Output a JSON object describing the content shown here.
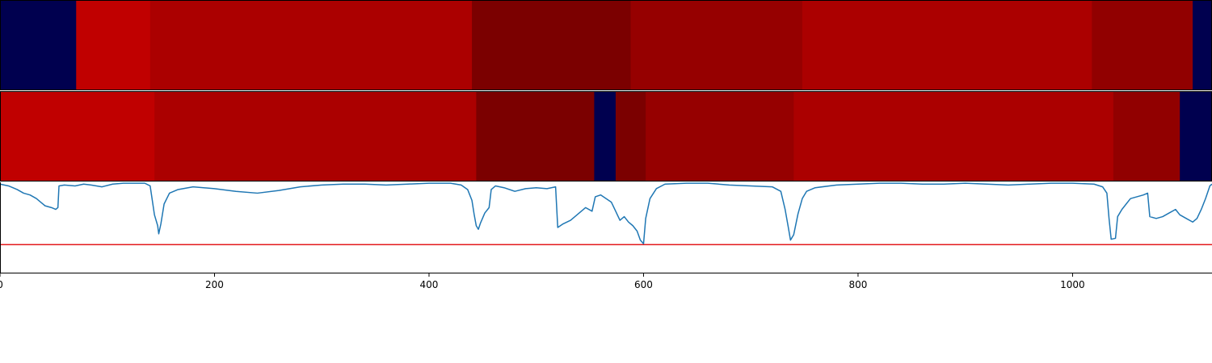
{
  "chart_data": {
    "type": "heatmap",
    "x_range": [
      0,
      1130
    ],
    "x_ticks": [
      {
        "value": 0,
        "label": "0"
      },
      {
        "value": 200,
        "label": "200"
      },
      {
        "value": 400,
        "label": "400"
      },
      {
        "value": 600,
        "label": "600"
      },
      {
        "value": 800,
        "label": "800"
      },
      {
        "value": 1000,
        "label": "1000"
      }
    ],
    "tracks": [
      {
        "segments": [
          {
            "start": 0,
            "end": 71,
            "color": "#00004f"
          },
          {
            "start": 71,
            "end": 140,
            "color": "#c00000"
          },
          {
            "start": 140,
            "end": 440,
            "color": "#ab0000"
          },
          {
            "start": 440,
            "end": 588,
            "color": "#7b0000"
          },
          {
            "start": 588,
            "end": 748,
            "color": "#960000"
          },
          {
            "start": 748,
            "end": 1018,
            "color": "#ab0000"
          },
          {
            "start": 1018,
            "end": 1112,
            "color": "#910000"
          },
          {
            "start": 1112,
            "end": 1130,
            "color": "#00004f"
          }
        ]
      },
      {
        "segments": [
          {
            "start": 0,
            "end": 144,
            "color": "#c00000"
          },
          {
            "start": 144,
            "end": 444,
            "color": "#ab0000"
          },
          {
            "start": 444,
            "end": 554,
            "color": "#7b0000"
          },
          {
            "start": 554,
            "end": 574,
            "color": "#00004f"
          },
          {
            "start": 574,
            "end": 602,
            "color": "#7b0000"
          },
          {
            "start": 602,
            "end": 740,
            "color": "#960000"
          },
          {
            "start": 740,
            "end": 1038,
            "color": "#ab0000"
          },
          {
            "start": 1038,
            "end": 1100,
            "color": "#910000"
          },
          {
            "start": 1100,
            "end": 1130,
            "color": "#00004f"
          }
        ]
      }
    ],
    "line": {
      "color": "#1f77b4",
      "ylim": [
        0,
        1
      ],
      "threshold": {
        "value": 0.31,
        "color": "#e31a1c"
      },
      "points": [
        [
          0,
          0.98
        ],
        [
          8,
          0.96
        ],
        [
          16,
          0.92
        ],
        [
          22,
          0.88
        ],
        [
          28,
          0.86
        ],
        [
          34,
          0.82
        ],
        [
          38,
          0.78
        ],
        [
          42,
          0.74
        ],
        [
          48,
          0.72
        ],
        [
          52,
          0.7
        ],
        [
          54,
          0.72
        ],
        [
          55,
          0.96
        ],
        [
          60,
          0.97
        ],
        [
          70,
          0.96
        ],
        [
          78,
          0.98
        ],
        [
          85,
          0.97
        ],
        [
          95,
          0.95
        ],
        [
          105,
          0.98
        ],
        [
          115,
          0.99
        ],
        [
          125,
          0.99
        ],
        [
          135,
          0.99
        ],
        [
          140,
          0.96
        ],
        [
          142,
          0.8
        ],
        [
          144,
          0.64
        ],
        [
          147,
          0.52
        ],
        [
          148,
          0.43
        ],
        [
          150,
          0.54
        ],
        [
          153,
          0.76
        ],
        [
          158,
          0.88
        ],
        [
          166,
          0.92
        ],
        [
          180,
          0.95
        ],
        [
          200,
          0.93
        ],
        [
          220,
          0.9
        ],
        [
          240,
          0.88
        ],
        [
          260,
          0.91
        ],
        [
          280,
          0.95
        ],
        [
          300,
          0.97
        ],
        [
          320,
          0.98
        ],
        [
          340,
          0.98
        ],
        [
          360,
          0.97
        ],
        [
          380,
          0.98
        ],
        [
          400,
          0.99
        ],
        [
          420,
          0.99
        ],
        [
          430,
          0.97
        ],
        [
          436,
          0.92
        ],
        [
          440,
          0.8
        ],
        [
          442,
          0.65
        ],
        [
          444,
          0.52
        ],
        [
          446,
          0.48
        ],
        [
          448,
          0.55
        ],
        [
          452,
          0.66
        ],
        [
          456,
          0.72
        ],
        [
          458,
          0.92
        ],
        [
          462,
          0.96
        ],
        [
          470,
          0.94
        ],
        [
          480,
          0.9
        ],
        [
          490,
          0.93
        ],
        [
          500,
          0.94
        ],
        [
          510,
          0.93
        ],
        [
          518,
          0.95
        ],
        [
          520,
          0.5
        ],
        [
          525,
          0.54
        ],
        [
          532,
          0.58
        ],
        [
          540,
          0.66
        ],
        [
          546,
          0.72
        ],
        [
          552,
          0.68
        ],
        [
          555,
          0.84
        ],
        [
          560,
          0.86
        ],
        [
          565,
          0.82
        ],
        [
          570,
          0.78
        ],
        [
          574,
          0.68
        ],
        [
          578,
          0.58
        ],
        [
          582,
          0.62
        ],
        [
          586,
          0.56
        ],
        [
          590,
          0.52
        ],
        [
          594,
          0.46
        ],
        [
          597,
          0.36
        ],
        [
          600,
          0.32
        ],
        [
          602,
          0.6
        ],
        [
          606,
          0.82
        ],
        [
          612,
          0.93
        ],
        [
          620,
          0.98
        ],
        [
          640,
          0.99
        ],
        [
          660,
          0.99
        ],
        [
          680,
          0.97
        ],
        [
          700,
          0.96
        ],
        [
          720,
          0.95
        ],
        [
          728,
          0.9
        ],
        [
          732,
          0.7
        ],
        [
          735,
          0.5
        ],
        [
          737,
          0.36
        ],
        [
          740,
          0.42
        ],
        [
          744,
          0.65
        ],
        [
          748,
          0.82
        ],
        [
          752,
          0.9
        ],
        [
          760,
          0.94
        ],
        [
          780,
          0.97
        ],
        [
          800,
          0.98
        ],
        [
          820,
          0.99
        ],
        [
          840,
          0.99
        ],
        [
          860,
          0.98
        ],
        [
          880,
          0.98
        ],
        [
          900,
          0.99
        ],
        [
          920,
          0.98
        ],
        [
          940,
          0.97
        ],
        [
          960,
          0.98
        ],
        [
          980,
          0.99
        ],
        [
          1000,
          0.99
        ],
        [
          1020,
          0.98
        ],
        [
          1028,
          0.95
        ],
        [
          1032,
          0.88
        ],
        [
          1034,
          0.6
        ],
        [
          1036,
          0.37
        ],
        [
          1040,
          0.38
        ],
        [
          1042,
          0.62
        ],
        [
          1046,
          0.7
        ],
        [
          1050,
          0.76
        ],
        [
          1054,
          0.82
        ],
        [
          1060,
          0.84
        ],
        [
          1066,
          0.86
        ],
        [
          1070,
          0.88
        ],
        [
          1072,
          0.62
        ],
        [
          1078,
          0.6
        ],
        [
          1084,
          0.62
        ],
        [
          1090,
          0.66
        ],
        [
          1096,
          0.7
        ],
        [
          1100,
          0.64
        ],
        [
          1106,
          0.6
        ],
        [
          1112,
          0.56
        ],
        [
          1116,
          0.6
        ],
        [
          1120,
          0.7
        ],
        [
          1124,
          0.82
        ],
        [
          1128,
          0.96
        ],
        [
          1130,
          0.98
        ]
      ]
    }
  }
}
